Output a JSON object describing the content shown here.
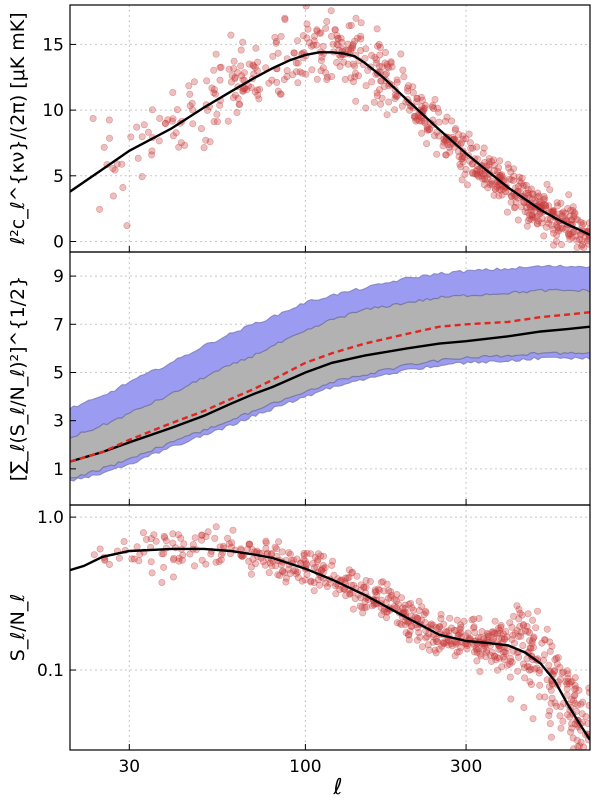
{
  "chart_data": [
    {
      "panel": "top",
      "type": "scatter",
      "ylabel": "ℓ²c_ℓ^{κν}/(2π) [μK mK]",
      "yticks": [
        "0",
        "5",
        "10",
        "15"
      ],
      "ylim": [
        -0.8,
        18
      ],
      "xscale": "log",
      "xlim": [
        20,
        700
      ],
      "grid": true,
      "series": [
        {
          "name": "",
          "role": "model curve",
          "color": "#000000",
          "x": [
            20,
            25,
            30,
            40,
            50,
            60,
            70,
            80,
            90,
            100,
            110,
            120,
            130,
            140,
            150,
            170,
            200,
            250,
            300,
            350,
            400,
            450,
            500,
            550,
            600,
            650,
            700
          ],
          "y": [
            3.8,
            5.5,
            6.9,
            8.6,
            10.2,
            11.4,
            12.4,
            13.2,
            13.8,
            14.2,
            14.4,
            14.4,
            14.3,
            14.1,
            13.6,
            12.5,
            10.8,
            8.5,
            6.7,
            5.3,
            4.1,
            3.2,
            2.4,
            1.8,
            1.3,
            0.9,
            0.5
          ]
        }
      ],
      "scatter": {
        "color": "#c83c3c",
        "note": "measured points, noisy around the curve"
      }
    },
    {
      "panel": "middle",
      "type": "area",
      "ylabel": "[∑_ℓ(S_ℓ/N_ℓ)²]^{1/2}",
      "yticks": [
        "1",
        "3",
        "5",
        "7",
        "9"
      ],
      "ylim": [
        -0.5,
        10
      ],
      "xscale": "log",
      "xlim": [
        20,
        700
      ],
      "grid": true,
      "x": [
        20,
        25,
        30,
        40,
        50,
        60,
        70,
        80,
        100,
        120,
        150,
        200,
        250,
        300,
        400,
        500,
        600,
        700
      ],
      "bands": [
        {
          "name": "",
          "role": "outer band",
          "color": "#9b9bf2",
          "lower": [
            0.5,
            0.8,
            1.2,
            1.9,
            2.4,
            2.8,
            3.2,
            3.5,
            4.0,
            4.4,
            4.7,
            5.1,
            5.3,
            5.4,
            5.5,
            5.6,
            5.6,
            5.6
          ],
          "upper": [
            3.5,
            4.0,
            4.6,
            5.4,
            6.1,
            6.6,
            7.0,
            7.3,
            7.9,
            8.2,
            8.5,
            8.9,
            9.1,
            9.2,
            9.3,
            9.4,
            9.4,
            9.4
          ]
        },
        {
          "name": "",
          "role": "inner band",
          "color": "#b2b2b2",
          "lower": [
            0.6,
            1.0,
            1.4,
            2.1,
            2.6,
            3.0,
            3.4,
            3.7,
            4.2,
            4.6,
            4.9,
            5.3,
            5.5,
            5.6,
            5.7,
            5.8,
            5.8,
            5.8
          ],
          "upper": [
            2.3,
            2.8,
            3.3,
            4.1,
            4.8,
            5.3,
            5.7,
            6.1,
            6.7,
            7.2,
            7.6,
            7.9,
            8.1,
            8.2,
            8.3,
            8.4,
            8.4,
            8.4
          ]
        }
      ],
      "series": [
        {
          "name": "",
          "role": "black solid",
          "color": "#000000",
          "dash": "solid",
          "y": [
            1.3,
            1.7,
            2.1,
            2.7,
            3.2,
            3.7,
            4.1,
            4.4,
            5.0,
            5.4,
            5.7,
            6.0,
            6.2,
            6.3,
            6.5,
            6.7,
            6.8,
            6.9
          ]
        },
        {
          "name": "",
          "role": "red dashed",
          "color": "#e0261f",
          "dash": "dashed",
          "y": [
            1.3,
            1.7,
            2.2,
            2.9,
            3.4,
            3.9,
            4.3,
            4.7,
            5.4,
            5.8,
            6.2,
            6.6,
            6.9,
            7.0,
            7.1,
            7.3,
            7.4,
            7.5
          ]
        }
      ]
    },
    {
      "panel": "bottom",
      "type": "scatter",
      "ylabel": "S_ℓ/N_ℓ",
      "yticks": [
        "0.1",
        "1.0"
      ],
      "yscale": "log",
      "ylim": [
        0.03,
        1.2
      ],
      "xscale": "log",
      "xlim": [
        20,
        700
      ],
      "xlabel": "ℓ",
      "xticks": [
        "30",
        "100",
        "300"
      ],
      "grid": true,
      "series": [
        {
          "name": "",
          "role": "model curve",
          "color": "#000000",
          "x": [
            20,
            22,
            25,
            30,
            35,
            40,
            50,
            60,
            70,
            80,
            100,
            120,
            150,
            200,
            250,
            300,
            350,
            400,
            450,
            500,
            550,
            600,
            650,
            700
          ],
          "y": [
            0.45,
            0.48,
            0.55,
            0.6,
            0.61,
            0.62,
            0.62,
            0.6,
            0.57,
            0.54,
            0.46,
            0.39,
            0.31,
            0.22,
            0.17,
            0.155,
            0.15,
            0.145,
            0.13,
            0.11,
            0.085,
            0.06,
            0.045,
            0.035
          ]
        }
      ],
      "scatter": {
        "color": "#c83c3c",
        "note": "measured points, noisy around the curve"
      }
    }
  ]
}
